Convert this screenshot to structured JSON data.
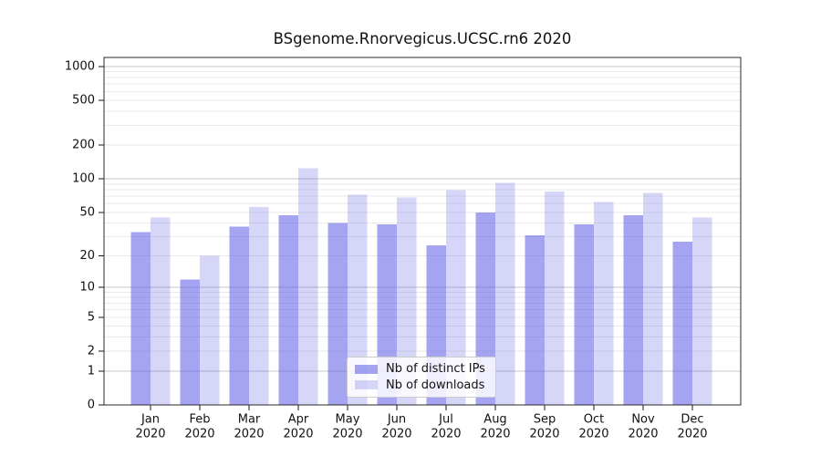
{
  "title": "BSgenome.Rnorvegicus.UCSC.rn6 2020",
  "legend": {
    "items": [
      {
        "label": "Nb of distinct IPs",
        "color": "rgba(90,90,230,0.55)"
      },
      {
        "label": "Nb of downloads",
        "color": "rgba(90,90,230,0.25)"
      }
    ]
  },
  "chart_data": {
    "type": "bar",
    "title": "BSgenome.Rnorvegicus.UCSC.rn6 2020",
    "categories": [
      "Jan",
      "Feb",
      "Mar",
      "Apr",
      "May",
      "Jun",
      "Jul",
      "Aug",
      "Sep",
      "Oct",
      "Nov",
      "Dec"
    ],
    "year_label": "2020",
    "series": [
      {
        "name": "Nb of distinct IPs",
        "color": "rgba(90,90,230,0.55)",
        "values": [
          33,
          12,
          37,
          47,
          40,
          39,
          25,
          50,
          31,
          39,
          47,
          27
        ]
      },
      {
        "name": "Nb of downloads",
        "color": "rgba(90,90,230,0.25)",
        "values": [
          45,
          20,
          56,
          125,
          72,
          68,
          79,
          92,
          77,
          62,
          75,
          45
        ]
      }
    ],
    "xlabel": "",
    "ylabel": "",
    "y_scale": "log1p",
    "y_ticks": [
      0,
      1,
      2,
      5,
      10,
      20,
      50,
      100,
      200,
      500,
      1000
    ],
    "y_major_grid": [
      1,
      10,
      100,
      1000
    ],
    "ylim": [
      0,
      1200
    ],
    "grid": true,
    "legend_position": "inside-bottom-center"
  },
  "colors": {
    "background": "#ffffff",
    "spine": "#2a2a2a",
    "major_grid": "#c6c6c6",
    "minor_grid": "#e9e9e9",
    "tick": "#1a1a1a",
    "bar_ips": "rgba(90,90,230,0.55)",
    "bar_downloads": "rgba(90,90,230,0.25)"
  }
}
